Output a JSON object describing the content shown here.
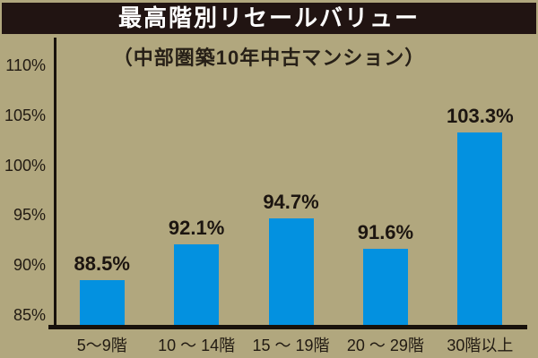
{
  "header": {
    "title": "最高階別リセールバリュー",
    "subtitle": "（中部圏築10年中古マンション）"
  },
  "chart_data": {
    "type": "bar",
    "title": "最高階別リセールバリュー",
    "subtitle": "（中部圏築10年中古マンション）",
    "categories": [
      "5〜9階",
      "10 〜 14階",
      "15 〜 19階",
      "20 〜 29階",
      "30階以上"
    ],
    "values": [
      88.5,
      92.1,
      94.7,
      91.6,
      103.3
    ],
    "value_labels": [
      "88.5%",
      "92.1%",
      "94.7%",
      "91.6%",
      "103.3%"
    ],
    "yticks": [
      85,
      90,
      95,
      100,
      105,
      110
    ],
    "ytick_labels": [
      "85%",
      "90%",
      "95%",
      "100%",
      "105%",
      "110%"
    ],
    "ylim": [
      84,
      111.1
    ],
    "grid": false,
    "legend": false,
    "colors": {
      "bar": "#0391e0",
      "background": "#b1a77e",
      "title_bar": "#211412",
      "title_text": "#ffffff",
      "text": "#211a12"
    }
  }
}
